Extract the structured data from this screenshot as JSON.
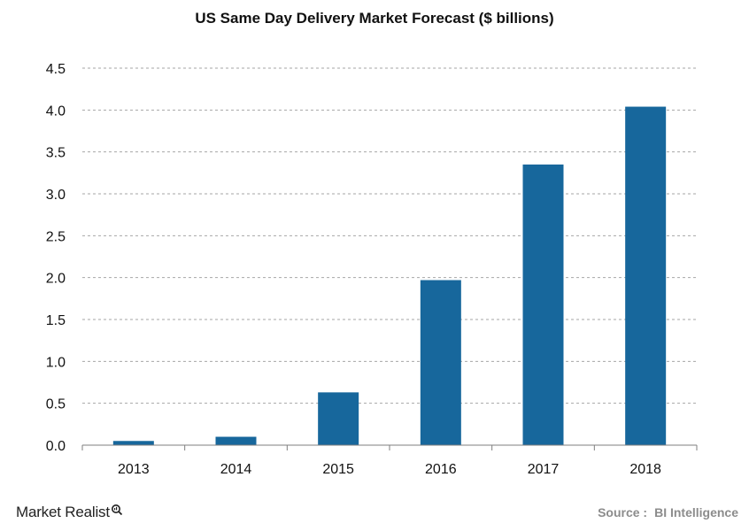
{
  "chart_data": {
    "type": "bar",
    "title": "US Same Day Delivery Market Forecast ($ billions)",
    "categories": [
      "2013",
      "2014",
      "2015",
      "2016",
      "2017",
      "2018"
    ],
    "values": [
      0.05,
      0.1,
      0.63,
      1.97,
      3.35,
      4.04
    ],
    "ylim": [
      0,
      4.5
    ],
    "yticks": [
      "0.0",
      "0.5",
      "1.0",
      "1.5",
      "2.0",
      "2.5",
      "3.0",
      "3.5",
      "4.0",
      "4.5"
    ],
    "grid": true,
    "bar_color": "#17679c",
    "grid_color": "#a6a6a6"
  },
  "footer": {
    "logo_market": "Market",
    "logo_realist": "Realist",
    "source_label": "Source :",
    "source_name": "BI Intelligence"
  }
}
